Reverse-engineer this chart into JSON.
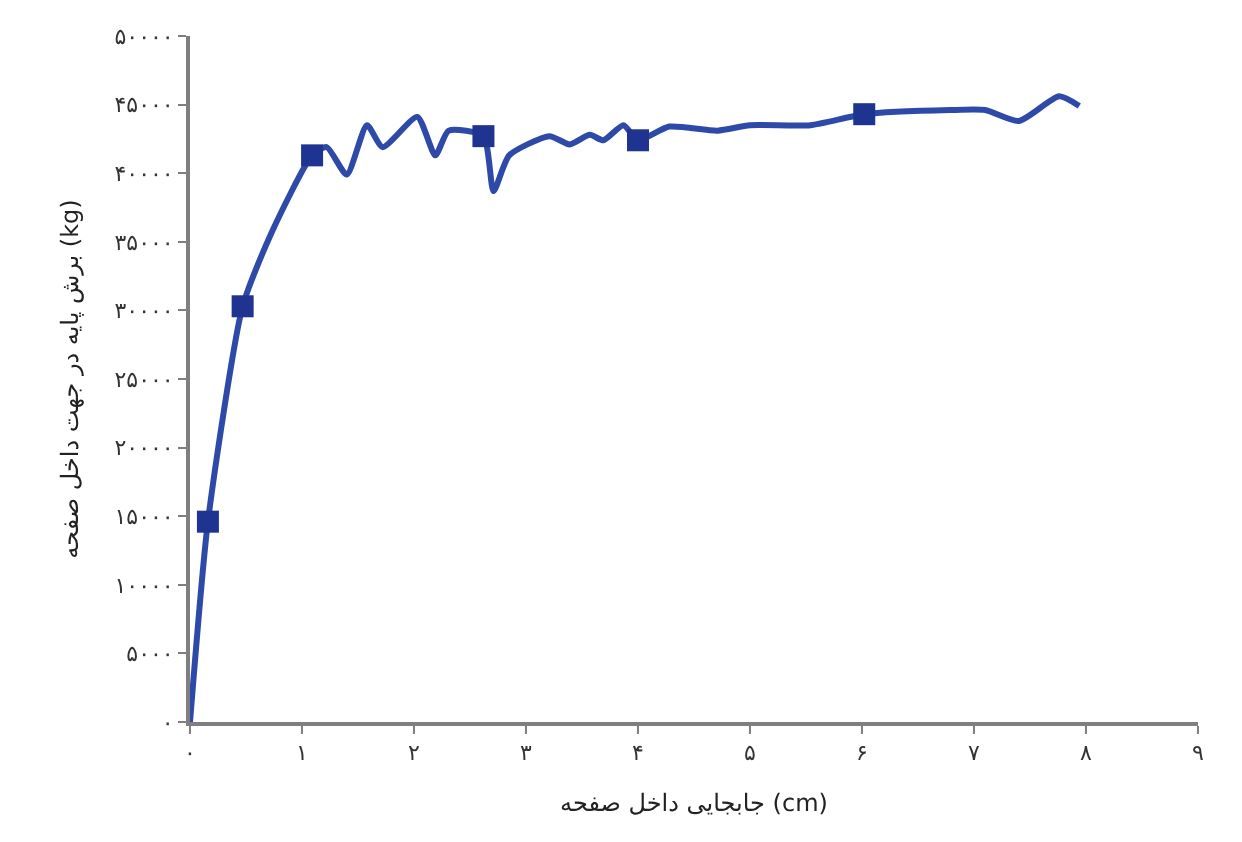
{
  "chart_data": {
    "type": "line",
    "xlabel": "جابجایی داخل صفحه (cm)",
    "ylabel": "برش پایه در جهت داخل صفحه (kg)",
    "xlim": [
      0,
      9
    ],
    "ylim": [
      0,
      50000
    ],
    "xticks": [
      {
        "value": 0,
        "label": "۰"
      },
      {
        "value": 1,
        "label": "۱"
      },
      {
        "value": 2,
        "label": "۲"
      },
      {
        "value": 3,
        "label": "۳"
      },
      {
        "value": 4,
        "label": "۴"
      },
      {
        "value": 5,
        "label": "۵"
      },
      {
        "value": 6,
        "label": "۶"
      },
      {
        "value": 7,
        "label": "۷"
      },
      {
        "value": 8,
        "label": "۸"
      },
      {
        "value": 9,
        "label": "۹"
      }
    ],
    "yticks": [
      {
        "value": 0,
        "label": "۰"
      },
      {
        "value": 5000,
        "label": "۵۰۰۰"
      },
      {
        "value": 10000,
        "label": "۱۰۰۰۰"
      },
      {
        "value": 15000,
        "label": "۱۵۰۰۰"
      },
      {
        "value": 20000,
        "label": "۲۰۰۰۰"
      },
      {
        "value": 25000,
        "label": "۲۵۰۰۰"
      },
      {
        "value": 30000,
        "label": "۳۰۰۰۰"
      },
      {
        "value": 35000,
        "label": "۳۵۰۰۰"
      },
      {
        "value": 40000,
        "label": "۴۰۰۰۰"
      },
      {
        "value": 45000,
        "label": "۴۵۰۰۰"
      },
      {
        "value": 50000,
        "label": "۵۰۰۰۰"
      }
    ],
    "line_style": "solid",
    "series": [
      {
        "marker": "none",
        "color": "#2e4aa8",
        "x": [
          0,
          0.16,
          0.47,
          0.73,
          1.09,
          1.22,
          1.4,
          1.58,
          1.72,
          2.03,
          2.19,
          2.31,
          2.62,
          2.71,
          2.85,
          3.21,
          3.39,
          3.57,
          3.69,
          3.87,
          4.0,
          4.28,
          4.71,
          5.0,
          5.54,
          6.02,
          6.79,
          7.1,
          7.4,
          7.76,
          7.94
        ],
        "values": [
          0,
          14600,
          30300,
          35700,
          41300,
          41900,
          39900,
          43500,
          41900,
          44100,
          41300,
          43100,
          42700,
          38700,
          41300,
          42700,
          42100,
          42800,
          42400,
          43500,
          42400,
          43400,
          43100,
          43500,
          43500,
          44300,
          44600,
          44600,
          43800,
          45600,
          44900
        ]
      },
      {
        "type": "scatter",
        "marker": "square",
        "color": "#1f3390",
        "x": [
          0.16,
          0.47,
          1.09,
          2.62,
          4.0,
          6.02
        ],
        "values": [
          14600,
          30300,
          41300,
          42700,
          42400,
          44300
        ]
      }
    ]
  }
}
